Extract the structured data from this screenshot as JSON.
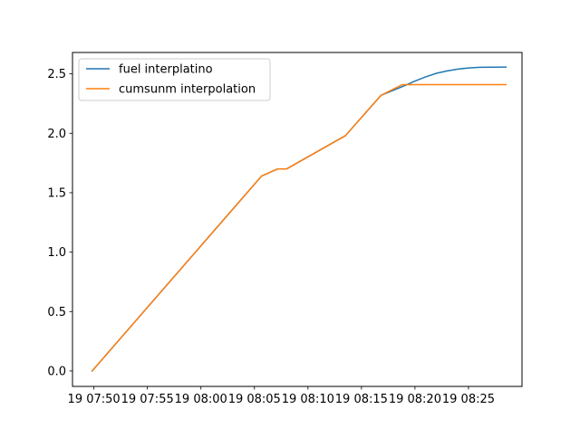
{
  "chart_data": {
    "type": "line",
    "title": "",
    "xlabel": "",
    "ylabel": "",
    "x_type": "datetime",
    "xlim": [
      "2000-01-19 07:48:00",
      "2000-01-19 08:30:00"
    ],
    "ylim": [
      -0.13,
      2.68
    ],
    "x_ticks": [
      {
        "t": "2000-01-19 07:50:00",
        "label": "19 07:50"
      },
      {
        "t": "2000-01-19 07:55:00",
        "label": "19 07:55"
      },
      {
        "t": "2000-01-19 08:00:00",
        "label": "19 08:00"
      },
      {
        "t": "2000-01-19 08:05:00",
        "label": "19 08:05"
      },
      {
        "t": "2000-01-19 08:10:00",
        "label": "19 08:10"
      },
      {
        "t": "2000-01-19 08:15:00",
        "label": "19 08:15"
      },
      {
        "t": "2000-01-19 08:20:00",
        "label": "19 08:20"
      },
      {
        "t": "2000-01-19 08:25:00",
        "label": "19 08:25"
      }
    ],
    "y_ticks": [
      {
        "v": 0.0,
        "label": "0.0"
      },
      {
        "v": 0.5,
        "label": "0.5"
      },
      {
        "v": 1.0,
        "label": "1.0"
      },
      {
        "v": 1.5,
        "label": "1.5"
      },
      {
        "v": 2.0,
        "label": "2.0"
      },
      {
        "v": 2.5,
        "label": "2.5"
      }
    ],
    "grid": false,
    "legend_position": "top-left",
    "series": [
      {
        "name": "fuel interplatino",
        "color": "#1f77b4",
        "points": [
          [
            "2000-01-19 07:49:50",
            0.0
          ],
          [
            "2000-01-19 08:05:40",
            1.64
          ],
          [
            "2000-01-19 08:07:10",
            1.7
          ],
          [
            "2000-01-19 08:08:00",
            1.7
          ],
          [
            "2000-01-19 08:13:30",
            1.98
          ],
          [
            "2000-01-19 08:16:50",
            2.32
          ],
          [
            "2000-01-19 08:19:00",
            2.4
          ],
          [
            "2000-01-19 08:20:00",
            2.44
          ],
          [
            "2000-01-19 08:21:00",
            2.475
          ],
          [
            "2000-01-19 08:22:00",
            2.505
          ],
          [
            "2000-01-19 08:23:00",
            2.525
          ],
          [
            "2000-01-19 08:24:00",
            2.54
          ],
          [
            "2000-01-19 08:25:00",
            2.55
          ],
          [
            "2000-01-19 08:26:00",
            2.555
          ],
          [
            "2000-01-19 08:28:30",
            2.557
          ]
        ]
      },
      {
        "name": "cumsunm interpolation",
        "color": "#ff7f0e",
        "points": [
          [
            "2000-01-19 07:49:50",
            0.0
          ],
          [
            "2000-01-19 08:05:40",
            1.64
          ],
          [
            "2000-01-19 08:07:10",
            1.7
          ],
          [
            "2000-01-19 08:08:00",
            1.7
          ],
          [
            "2000-01-19 08:13:30",
            1.98
          ],
          [
            "2000-01-19 08:16:50",
            2.32
          ],
          [
            "2000-01-19 08:18:50",
            2.41
          ],
          [
            "2000-01-19 08:28:30",
            2.41
          ]
        ]
      }
    ]
  }
}
